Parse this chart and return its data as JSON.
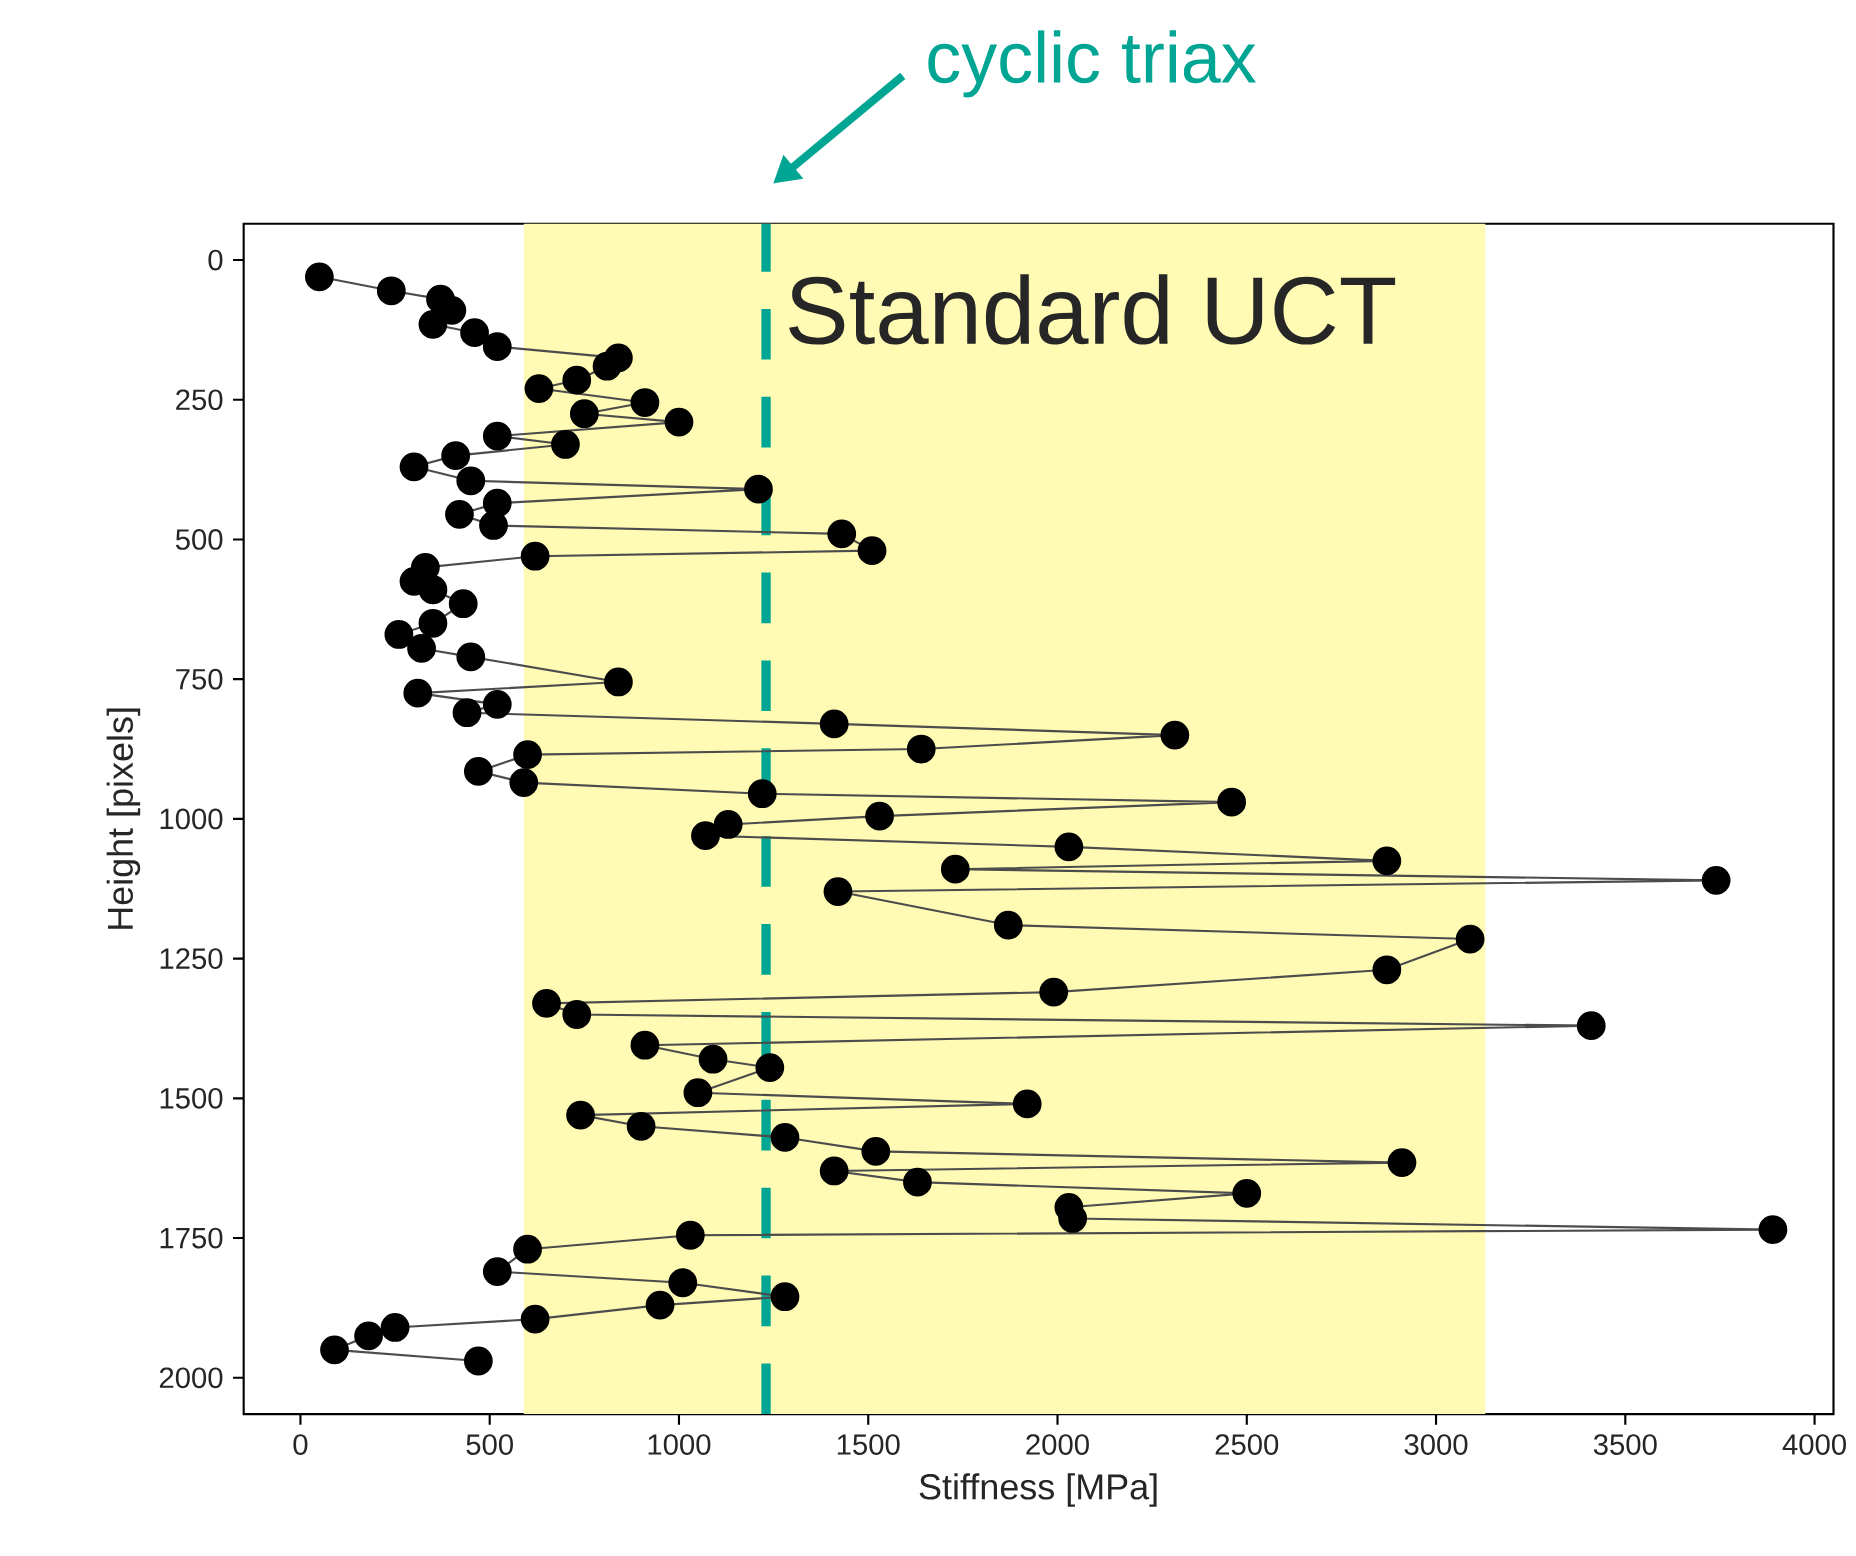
{
  "chart_data": {
    "type": "line",
    "xlabel": "Stiffness [MPa]",
    "ylabel": "Height [pixels]",
    "xlim": [
      -150,
      4050
    ],
    "ylim": [
      2065,
      -65
    ],
    "xticks": [
      0,
      500,
      1000,
      1500,
      2000,
      2500,
      3000,
      3500,
      4000
    ],
    "yticks": [
      0,
      250,
      500,
      750,
      1000,
      1250,
      1500,
      1750,
      2000
    ],
    "marker": "circle",
    "line_style": "solid",
    "x": [
      50,
      240,
      370,
      400,
      350,
      460,
      520,
      840,
      810,
      730,
      630,
      910,
      750,
      1000,
      520,
      700,
      410,
      300,
      450,
      1210,
      520,
      420,
      510,
      1430,
      1510,
      620,
      330,
      300,
      350,
      430,
      350,
      260,
      320,
      450,
      840,
      310,
      520,
      440,
      1410,
      2310,
      1640,
      600,
      470,
      590,
      1220,
      2460,
      1530,
      1130,
      1070,
      2030,
      2870,
      1730,
      3740,
      1420,
      1870,
      3090,
      2870,
      1990,
      650,
      730,
      3410,
      910,
      1090,
      1240,
      1050,
      1920,
      740,
      900,
      1280,
      1520,
      2910,
      1410,
      1630,
      2500,
      2030,
      2040,
      3890,
      1030,
      600,
      520,
      1010,
      1280,
      950,
      620,
      250,
      180,
      90,
      470
    ],
    "series": [
      {
        "color": "#000000",
        "values": [
          30,
          55,
          70,
          90,
          115,
          130,
          155,
          175,
          190,
          215,
          230,
          255,
          275,
          290,
          315,
          330,
          350,
          370,
          395,
          410,
          435,
          455,
          475,
          490,
          520,
          530,
          550,
          575,
          590,
          615,
          650,
          670,
          695,
          710,
          755,
          775,
          795,
          810,
          830,
          850,
          875,
          885,
          915,
          935,
          955,
          970,
          995,
          1010,
          1030,
          1050,
          1075,
          1090,
          1110,
          1130,
          1190,
          1215,
          1270,
          1310,
          1330,
          1350,
          1370,
          1405,
          1430,
          1445,
          1490,
          1510,
          1530,
          1550,
          1570,
          1595,
          1615,
          1630,
          1650,
          1670,
          1695,
          1715,
          1735,
          1745,
          1770,
          1810,
          1830,
          1855,
          1870,
          1895,
          1910,
          1925,
          1950,
          1970
        ]
      }
    ],
    "bands": [
      {
        "axis": "x",
        "from": 590,
        "to": 3130,
        "label": "Standard UCT",
        "color": "#fffbb4"
      }
    ],
    "ref_lines": [
      {
        "axis": "x",
        "value": 1230,
        "label": "cyclic triax",
        "color": "#00a693",
        "line_style": "dashed"
      }
    ]
  }
}
